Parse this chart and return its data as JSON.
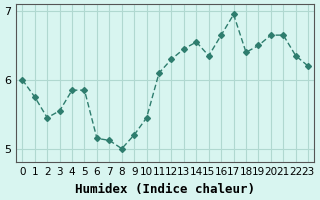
{
  "x": [
    0,
    1,
    2,
    3,
    4,
    5,
    6,
    7,
    8,
    9,
    10,
    11,
    12,
    13,
    14,
    15,
    16,
    17,
    18,
    19,
    20,
    21,
    22,
    23
  ],
  "y": [
    6.0,
    5.75,
    5.45,
    5.55,
    5.85,
    5.85,
    5.15,
    5.12,
    5.0,
    5.2,
    5.45,
    6.1,
    6.3,
    6.45,
    6.55,
    6.35,
    6.65,
    6.95,
    6.4,
    6.5,
    6.65,
    6.65,
    6.35,
    6.2
  ],
  "line_color": "#2e7d6e",
  "marker": "D",
  "marker_size": 3,
  "bg_color": "#d8f5f0",
  "grid_color": "#b0d8d0",
  "xlabel": "Humidex (Indice chaleur)",
  "ylabel": "",
  "title": "",
  "ylim": [
    4.8,
    7.1
  ],
  "yticks": [
    5,
    6,
    7
  ],
  "xtick_labels": [
    "0",
    "1",
    "2",
    "3",
    "4",
    "5",
    "6",
    "7",
    "8",
    "9",
    "10",
    "11",
    "12",
    "13",
    "14",
    "15",
    "16",
    "17",
    "18",
    "19",
    "20",
    "21",
    "22",
    "23"
  ],
  "xlabel_fontsize": 9,
  "tick_fontsize": 7.5,
  "ytick_fontsize": 8
}
